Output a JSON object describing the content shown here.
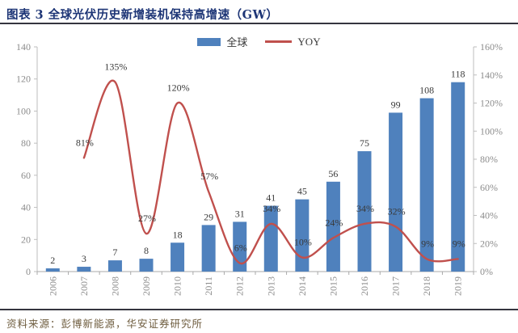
{
  "header": {
    "title": "图表 3 全球光伏历史新增装机保持高增速（GW）"
  },
  "legend": {
    "items": [
      {
        "label": "全球",
        "swatch": "bar-swatch",
        "color": "#4f81bd"
      },
      {
        "label": "YOY",
        "swatch": "line-swatch",
        "color": "#c0504d"
      }
    ]
  },
  "footer": {
    "source": "资料来源：彭博新能源，华安证券研究所"
  },
  "colors": {
    "bar": "#4f81bd",
    "line": "#c0504d",
    "title": "#1d3576",
    "source_text": "#6e5c3e",
    "axis_text": "#8c8c8c",
    "data_label": "#3a3a3a",
    "axis_line": "#bdbdbd",
    "divider": "#35353f"
  },
  "chart_data": {
    "type": "bar",
    "title": "图表 3 全球光伏历史新增装机保持高增速（GW）",
    "categories": [
      "2006",
      "2007",
      "2008",
      "2009",
      "2010",
      "2011",
      "2012",
      "2013",
      "2014",
      "2015",
      "2016",
      "2017",
      "2018",
      "2019"
    ],
    "series": [
      {
        "name": "全球",
        "type": "bar",
        "axis": "left",
        "unit": "GW",
        "values": [
          2,
          3,
          7,
          8,
          18,
          29,
          31,
          41,
          45,
          56,
          75,
          99,
          108,
          118
        ]
      },
      {
        "name": "YOY",
        "type": "line",
        "axis": "right",
        "unit": "%",
        "values": [
          null,
          81,
          135,
          27,
          120,
          57,
          6,
          34,
          10,
          24,
          34,
          32,
          9,
          9
        ],
        "labels": [
          "",
          "81%",
          "135%",
          "27%",
          "120%",
          "57%",
          "6%",
          "34%",
          "10%",
          "24%",
          "34%",
          "32%",
          "9%",
          "9%"
        ]
      }
    ],
    "left_axis": {
      "min": 0,
      "max": 140,
      "ticks": [
        "0",
        "20",
        "40",
        "60",
        "80",
        "100",
        "120",
        "140"
      ],
      "tick_values": [
        0,
        20,
        40,
        60,
        80,
        100,
        120,
        140
      ]
    },
    "right_axis": {
      "min": 0,
      "max": 160,
      "ticks": [
        "0%",
        "20%",
        "40%",
        "60%",
        "80%",
        "100%",
        "120%",
        "140%",
        "160%"
      ],
      "tick_values": [
        0,
        20,
        40,
        60,
        80,
        100,
        120,
        140,
        160
      ]
    },
    "grid": false,
    "legend_position": "top-center",
    "x_label_rotation": -90
  }
}
